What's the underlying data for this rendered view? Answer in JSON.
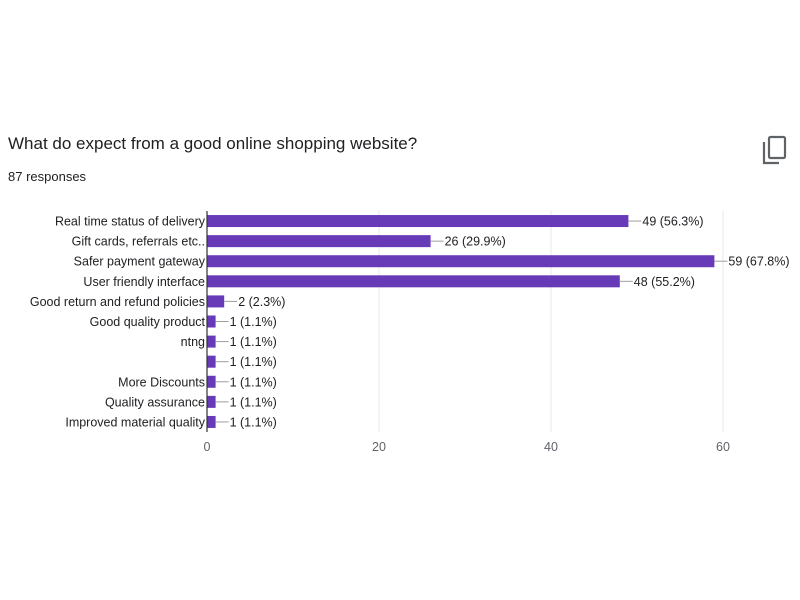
{
  "question": {
    "title": "What do expect from a good online shopping website?",
    "responses": "87 responses"
  },
  "copy_icon": "copy-icon",
  "colors": {
    "bar": "#673ab7",
    "grid": "#e8e8e8",
    "axis": "#333333",
    "leader": "#9e9e9e"
  },
  "chart_data": {
    "type": "bar",
    "orientation": "horizontal",
    "categories": [
      "Real time status of delivery",
      "Gift cards, referrals etc..",
      "Safer payment gateway",
      "User friendly interface",
      "Good return and refund policies",
      "Good quality product",
      "ntng",
      "",
      "More Discounts",
      "Quality assurance",
      "Improved material quality"
    ],
    "values": [
      49,
      26,
      59,
      48,
      2,
      1,
      1,
      1,
      1,
      1,
      1
    ],
    "value_labels": [
      "49 (56.3%)",
      "26 (29.9%)",
      "59 (67.8%)",
      "48 (55.2%)",
      "2 (2.3%)",
      "1 (1.1%)",
      "1 (1.1%)",
      "1 (1.1%)",
      "1 (1.1%)",
      "1 (1.1%)",
      "1 (1.1%)"
    ],
    "xlim": [
      0,
      60
    ],
    "xticks": [
      "0",
      "20",
      "40",
      "60"
    ],
    "grid": true
  }
}
